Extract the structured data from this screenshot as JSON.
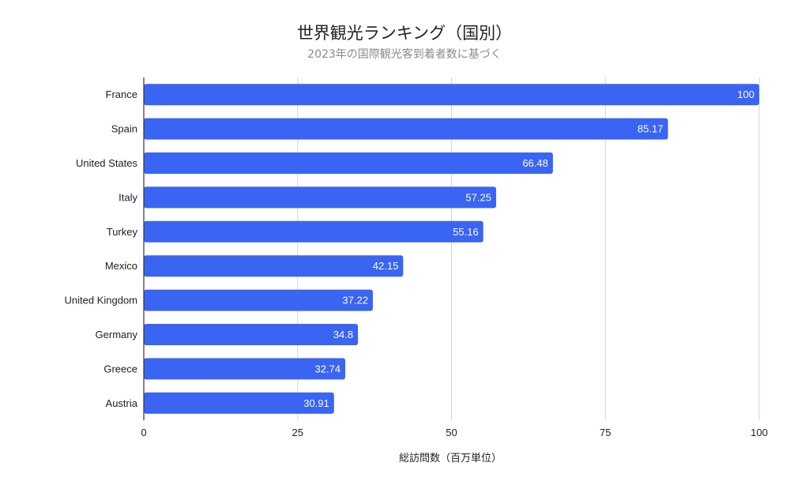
{
  "chart_data": {
    "type": "bar",
    "orientation": "horizontal",
    "title": "世界観光ランキング（国別）",
    "subtitle": "2023年の国際観光客到着者数に基づく",
    "xlabel": "総訪問数（百万単位）",
    "ylabel": "",
    "categories": [
      "France",
      "Spain",
      "United States",
      "Italy",
      "Turkey",
      "Mexico",
      "United Kingdom",
      "Germany",
      "Greece",
      "Austria"
    ],
    "values": [
      100,
      85.17,
      66.48,
      57.25,
      55.16,
      42.15,
      37.22,
      34.8,
      32.74,
      30.91
    ],
    "data_labels": [
      "100",
      "85.17",
      "66.48",
      "57.25",
      "55.16",
      "42.15",
      "37.22",
      "34.8",
      "32.74",
      "30.91"
    ],
    "xlim": [
      0,
      100
    ],
    "x_ticks": [
      0,
      25,
      50,
      75,
      100
    ],
    "x_tick_labels": [
      "0",
      "25",
      "50",
      "75",
      "100"
    ],
    "grid": true,
    "legend": "none",
    "colors": {
      "bar": "#3a64f2",
      "grid": "#d3d3d3",
      "axis": "#333333"
    }
  }
}
